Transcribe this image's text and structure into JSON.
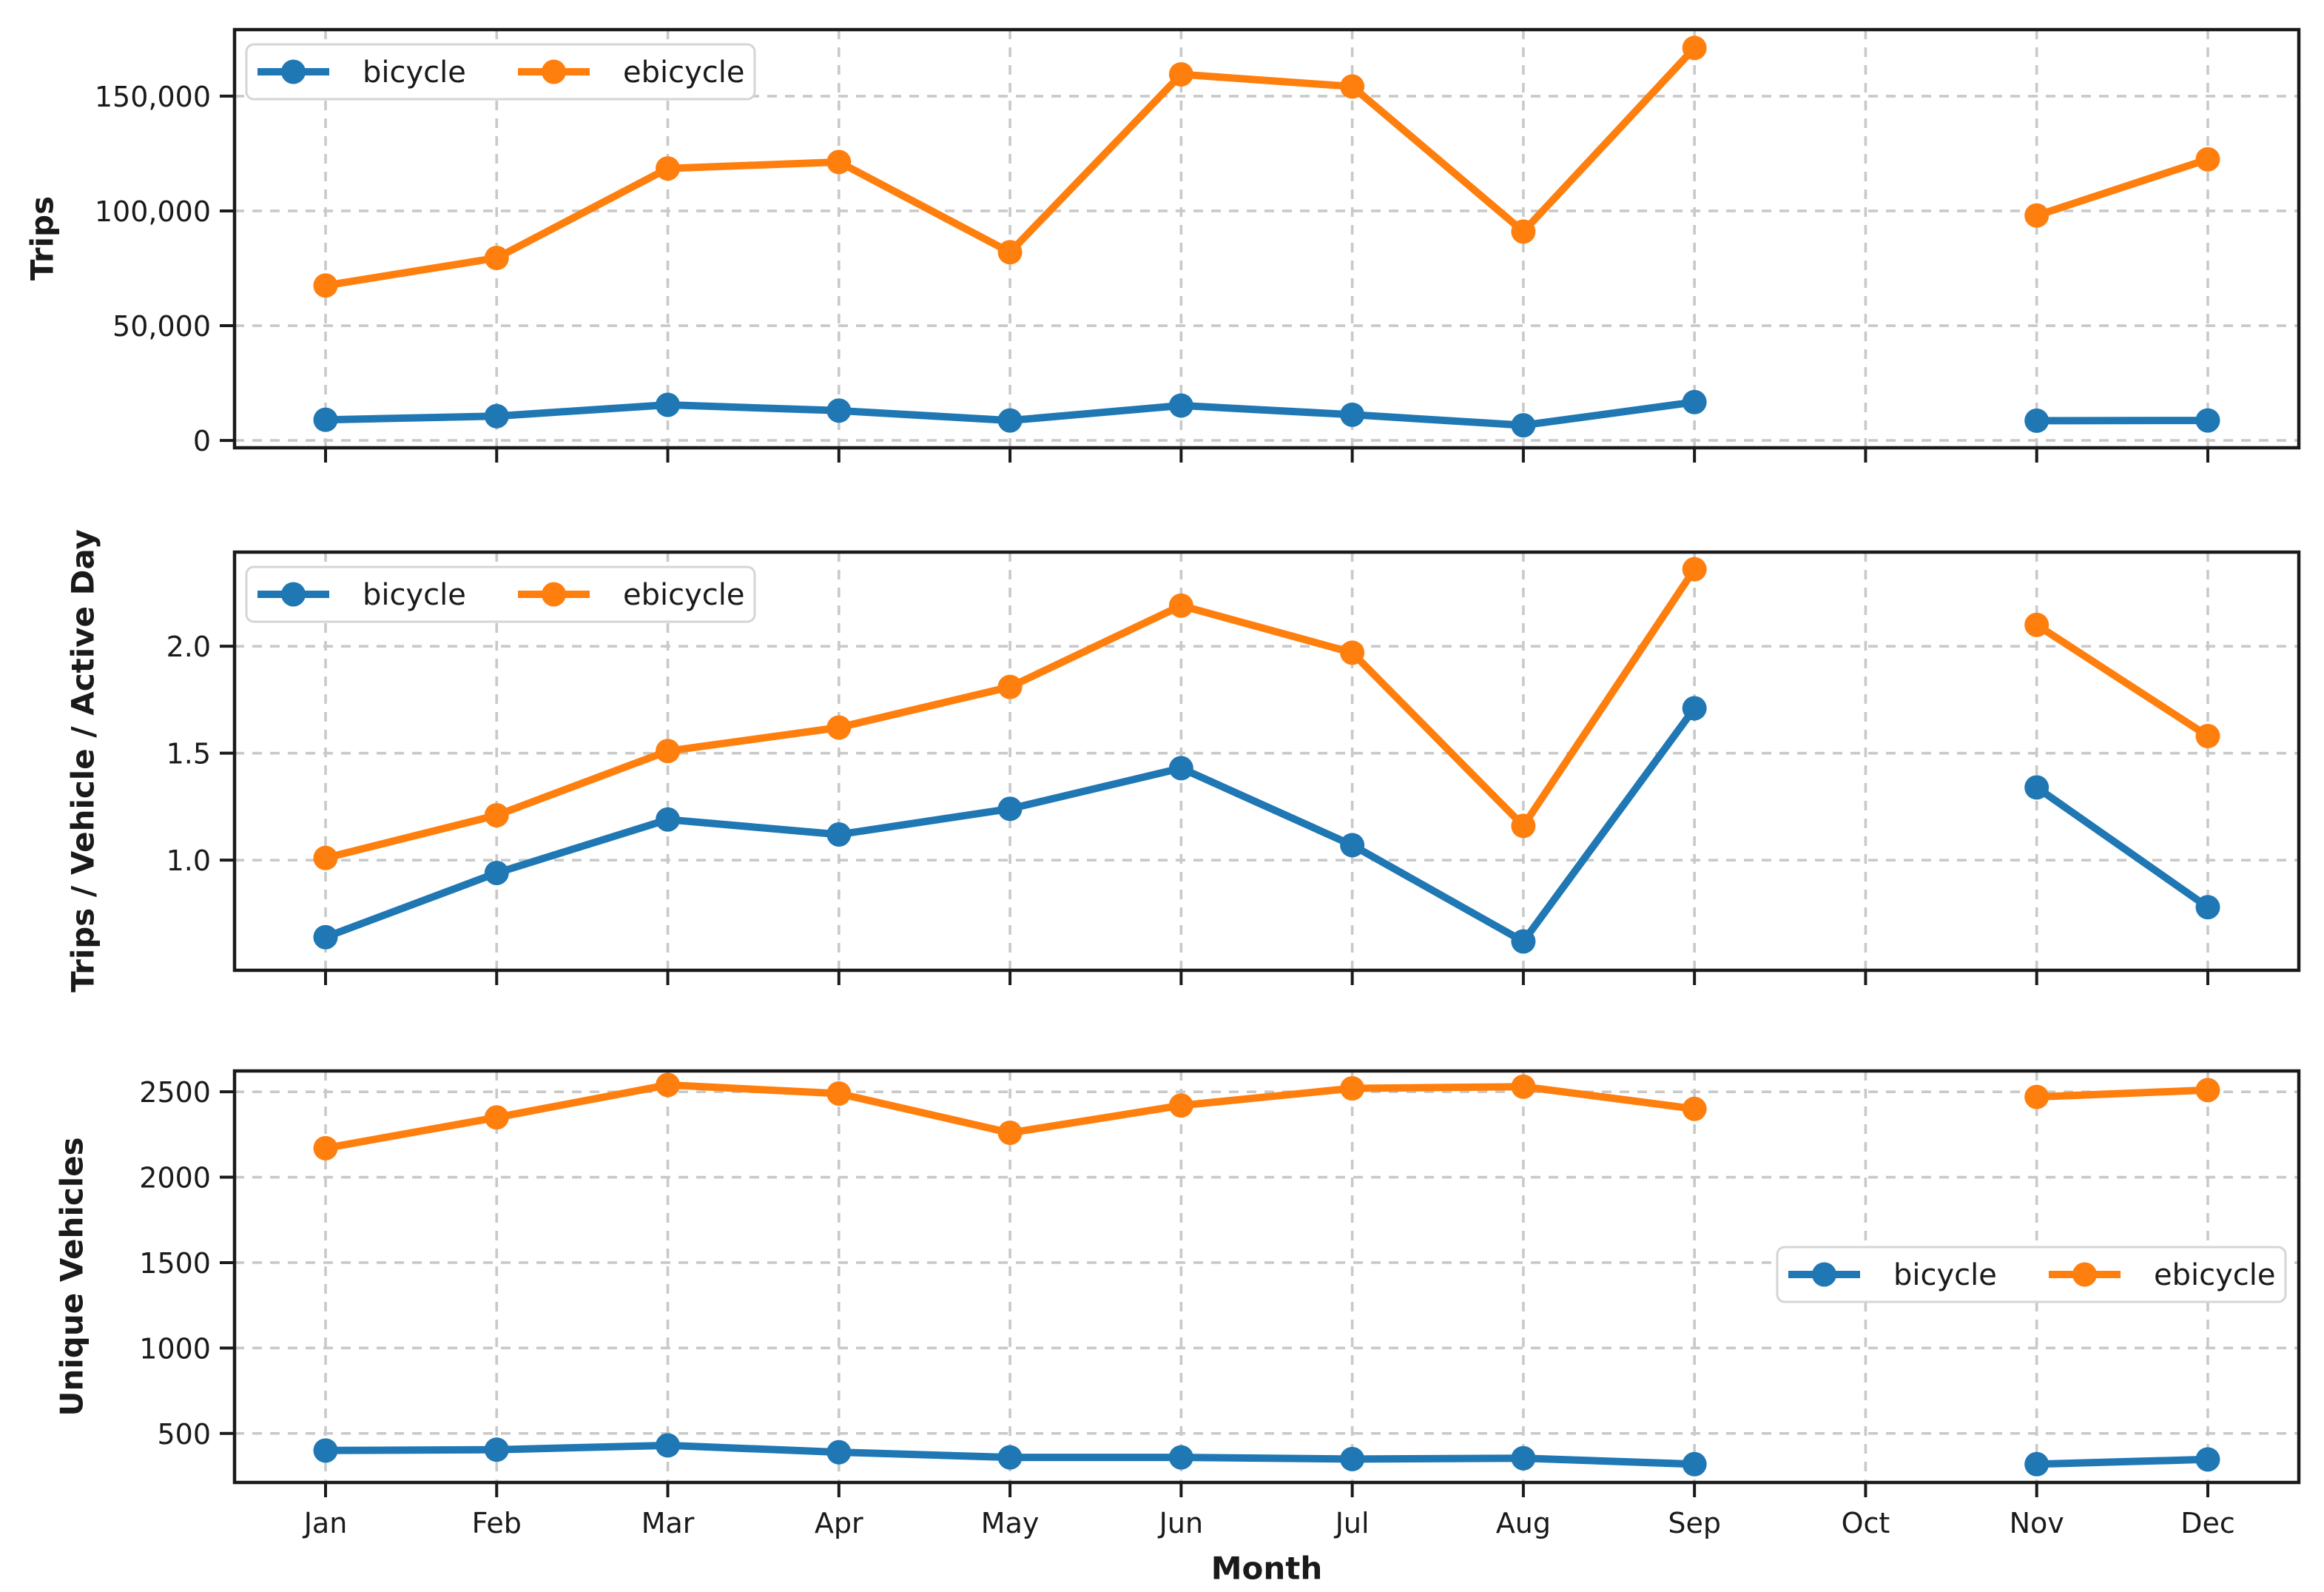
{
  "xlabel": "Month",
  "months": [
    "Jan",
    "Feb",
    "Mar",
    "Apr",
    "May",
    "Jun",
    "Jul",
    "Aug",
    "Sep",
    "Oct",
    "Nov",
    "Dec"
  ],
  "colors": {
    "bicycle": "#1f77b4",
    "ebicycle": "#ff7f0e",
    "grid": "#c9c9c9",
    "spine": "#1a1a1a",
    "text": "#1a1a1a",
    "legend_border": "#d5d5d5",
    "legend_bg": "#ffffff"
  },
  "legend": {
    "labels": [
      "bicycle",
      "ebicycle"
    ]
  },
  "chart_data": [
    {
      "type": "line",
      "ylabel": "Trips",
      "categories": [
        "Jan",
        "Feb",
        "Mar",
        "Apr",
        "May",
        "Jun",
        "Jul",
        "Aug",
        "Sep",
        "Oct",
        "Nov",
        "Dec"
      ],
      "series": [
        {
          "name": "bicycle",
          "values": [
            9000,
            10600,
            15500,
            13000,
            8700,
            15200,
            11200,
            6600,
            16700,
            null,
            8600,
            8700
          ]
        },
        {
          "name": "ebicycle",
          "values": [
            67500,
            79500,
            118500,
            121300,
            82000,
            159500,
            154200,
            91000,
            171000,
            null,
            98000,
            122500
          ]
        }
      ],
      "ytick_values": [
        0,
        50000,
        100000,
        150000
      ],
      "ytick_labels": [
        "0",
        "50,000",
        "100,000",
        "150,000"
      ],
      "ylim": [
        -3200,
        179000
      ],
      "grid": true,
      "legend_position": "upper-left"
    },
    {
      "type": "line",
      "ylabel": "Trips / Vehicle / Active Day",
      "categories": [
        "Jan",
        "Feb",
        "Mar",
        "Apr",
        "May",
        "Jun",
        "Jul",
        "Aug",
        "Sep",
        "Oct",
        "Nov",
        "Dec"
      ],
      "series": [
        {
          "name": "bicycle",
          "values": [
            0.64,
            0.94,
            1.19,
            1.12,
            1.24,
            1.43,
            1.07,
            0.62,
            1.71,
            null,
            1.34,
            0.78
          ]
        },
        {
          "name": "ebicycle",
          "values": [
            1.01,
            1.21,
            1.51,
            1.62,
            1.81,
            2.19,
            1.97,
            1.16,
            2.36,
            null,
            2.1,
            1.58
          ]
        }
      ],
      "ytick_values": [
        1.0,
        1.5,
        2.0
      ],
      "ytick_labels": [
        "1.0",
        "1.5",
        "2.0"
      ],
      "ylim": [
        0.485,
        2.44
      ],
      "grid": true,
      "legend_position": "upper-left"
    },
    {
      "type": "line",
      "ylabel": "Unique Vehicles",
      "categories": [
        "Jan",
        "Feb",
        "Mar",
        "Apr",
        "May",
        "Jun",
        "Jul",
        "Aug",
        "Sep",
        "Oct",
        "Nov",
        "Dec"
      ],
      "series": [
        {
          "name": "bicycle",
          "values": [
            400,
            405,
            430,
            390,
            360,
            360,
            350,
            355,
            320,
            null,
            320,
            348
          ]
        },
        {
          "name": "ebicycle",
          "values": [
            2170,
            2350,
            2540,
            2490,
            2260,
            2420,
            2520,
            2530,
            2400,
            null,
            2470,
            2510
          ]
        }
      ],
      "ytick_values": [
        500,
        1000,
        1500,
        2000,
        2500
      ],
      "ytick_labels": [
        "500",
        "1000",
        "1500",
        "2000",
        "2500"
      ],
      "ylim": [
        213,
        2622
      ],
      "grid": true,
      "legend_position": "center-right"
    }
  ]
}
